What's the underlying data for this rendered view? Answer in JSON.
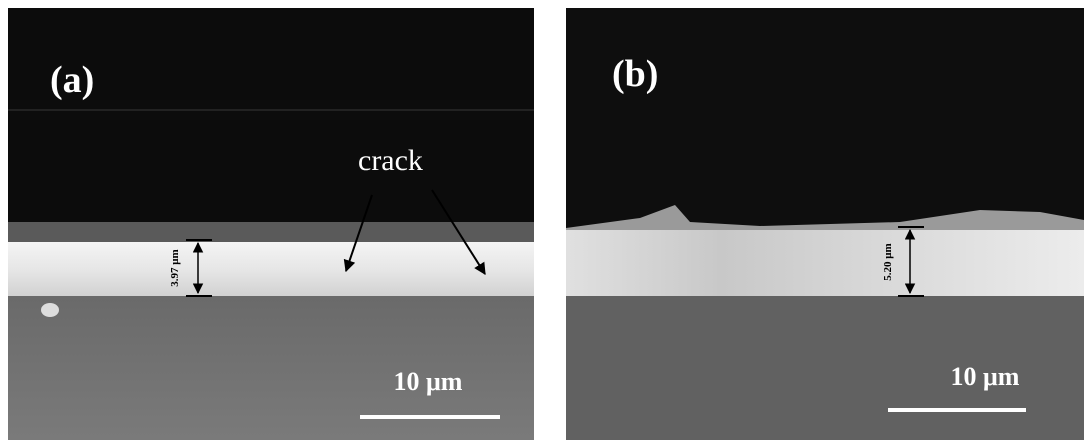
{
  "panels": [
    {
      "label": "(a)",
      "annotation": "crack",
      "thickness": "3.97 μm",
      "scale": "10 μm"
    },
    {
      "label": "(b)",
      "thickness": "5.20 μm",
      "scale": "10 μm"
    }
  ]
}
